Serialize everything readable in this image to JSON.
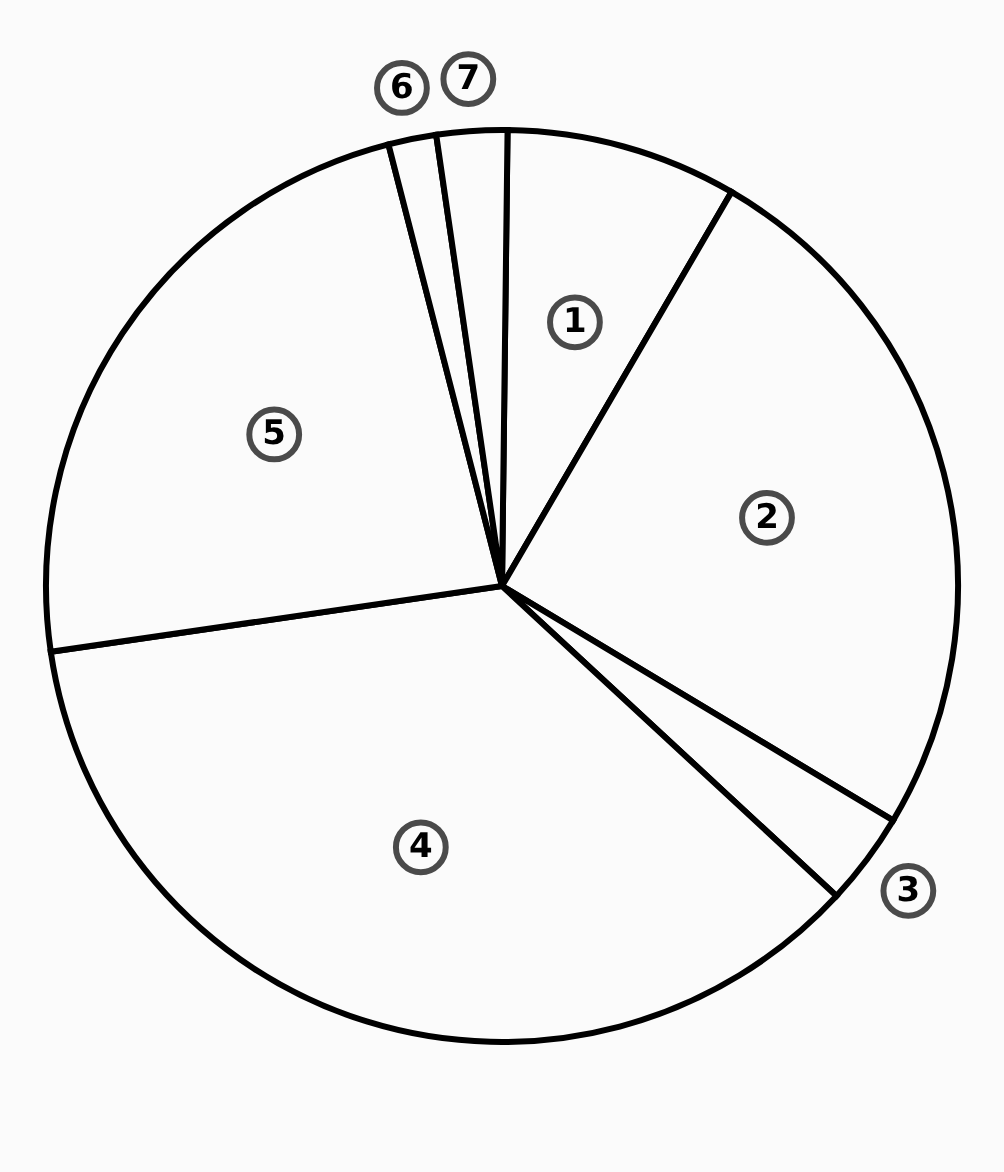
{
  "chart_data": {
    "type": "pie",
    "categories": [
      "1",
      "2",
      "3",
      "4",
      "5",
      "6",
      "7"
    ],
    "values": [
      8.2,
      25.2,
      3.3,
      35.8,
      23.3,
      1.7,
      2.5
    ],
    "colors": [
      "#fbfbfb",
      "#fbfbfb",
      "#fbfbfb",
      "#fbfbfb",
      "#fbfbfb",
      "#fbfbfb",
      "#fbfbfb"
    ]
  }
}
